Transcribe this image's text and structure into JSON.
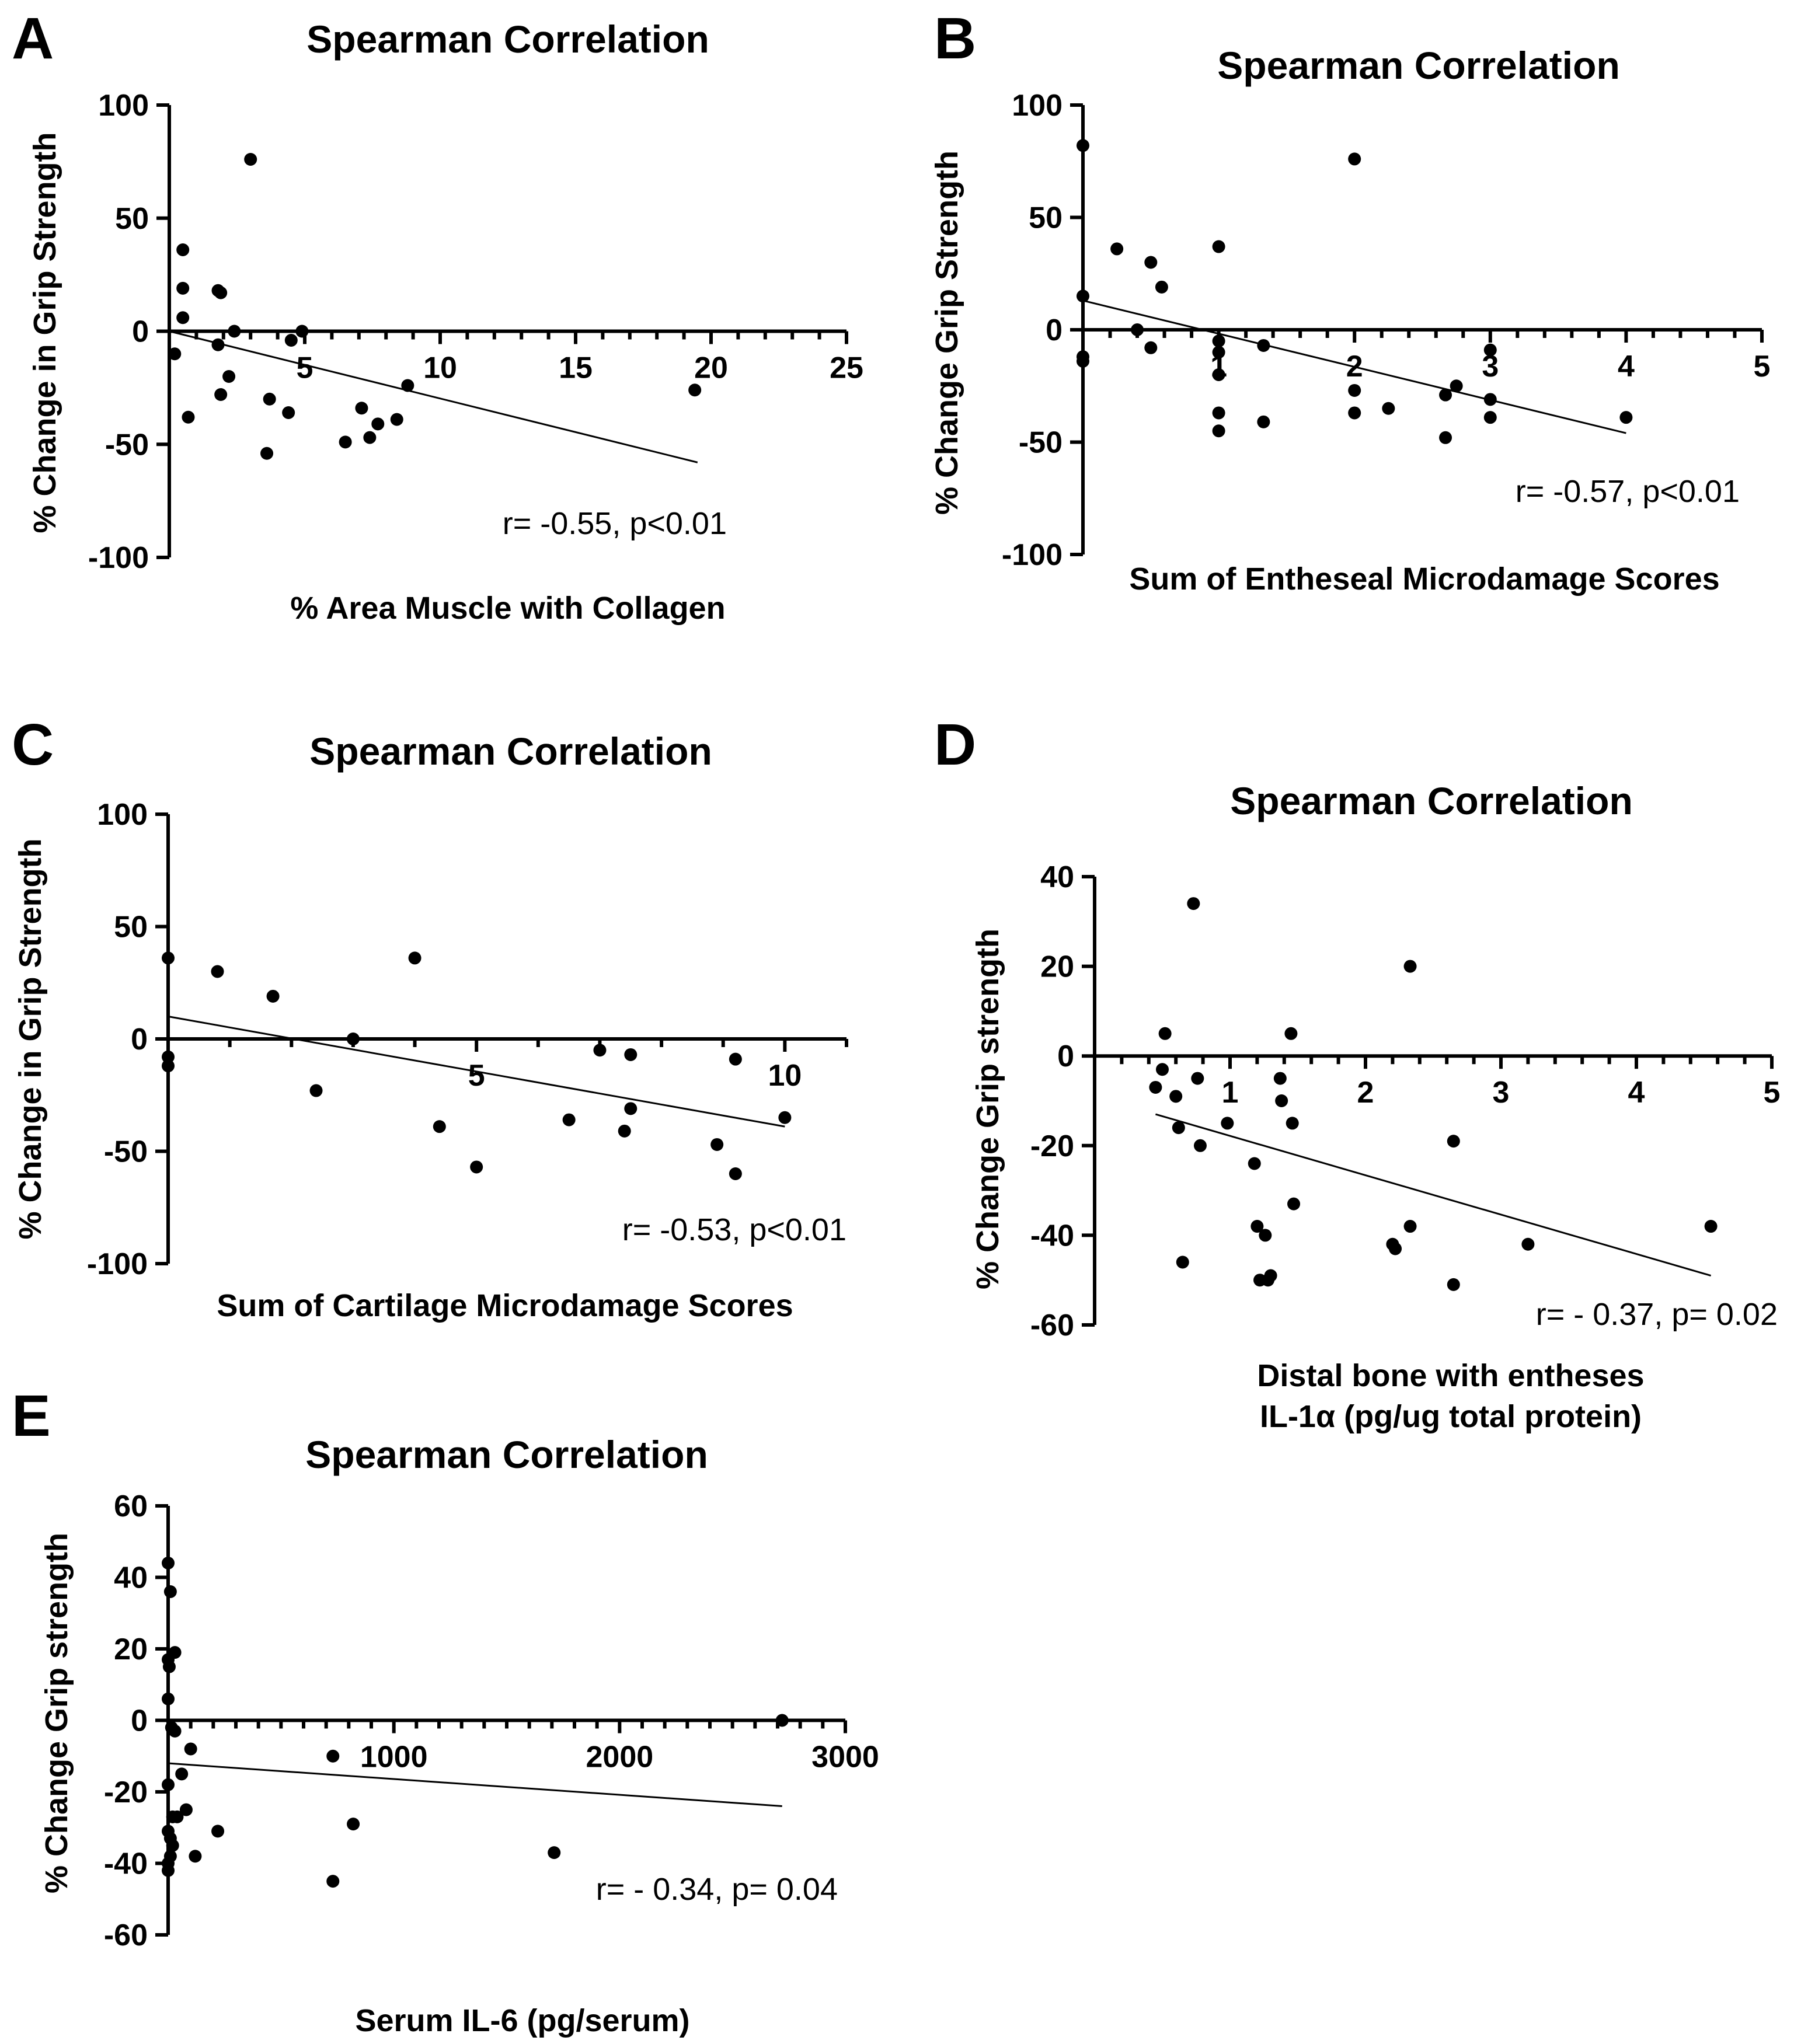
{
  "chart_data": [
    {
      "type": "scatter",
      "panel": "A",
      "title": "Spearman Correlation",
      "xlabel": [
        "% Area Muscle with Collagen"
      ],
      "ylabel": "% Change in Grip Strength",
      "xlim": [
        0,
        25
      ],
      "ylim": [
        -100,
        100
      ],
      "xticks": [
        5,
        10,
        15,
        20,
        25
      ],
      "yticks": [
        -100,
        -50,
        0,
        50,
        100
      ],
      "annotation": "r= -0.55, p<0.01",
      "fit": [
        [
          0,
          0
        ],
        [
          19.5,
          -58
        ]
      ],
      "points": [
        [
          0.2,
          -10
        ],
        [
          0.5,
          36
        ],
        [
          0.5,
          19
        ],
        [
          0.5,
          6
        ],
        [
          0.7,
          -38
        ],
        [
          1.8,
          18
        ],
        [
          1.9,
          17
        ],
        [
          1.8,
          -6
        ],
        [
          1.9,
          -28
        ],
        [
          2.2,
          -20
        ],
        [
          2.4,
          0
        ],
        [
          3,
          76
        ],
        [
          3.6,
          -54
        ],
        [
          3.7,
          -30
        ],
        [
          4.4,
          -36
        ],
        [
          4.5,
          -4
        ],
        [
          4.9,
          0
        ],
        [
          6.5,
          -49
        ],
        [
          7.1,
          -34
        ],
        [
          7.4,
          -47
        ],
        [
          7.7,
          -41
        ],
        [
          8.4,
          -39
        ],
        [
          8.8,
          -24
        ],
        [
          19.4,
          -26
        ]
      ]
    },
    {
      "type": "scatter",
      "panel": "B",
      "title": "Spearman Correlation",
      "xlabel": [
        "Sum of Entheseal Microdamage Scores"
      ],
      "ylabel": "% Change Grip Strength",
      "xlim": [
        0,
        5
      ],
      "ylim": [
        -100,
        100
      ],
      "xticks": [
        1,
        2,
        3,
        4,
        5
      ],
      "yticks": [
        -100,
        -50,
        0,
        50,
        100
      ],
      "annotation": "r= -0.57, p<0.01",
      "fit": [
        [
          0,
          13
        ],
        [
          4,
          -46
        ]
      ],
      "points": [
        [
          0,
          82
        ],
        [
          0,
          15
        ],
        [
          0,
          -12
        ],
        [
          0,
          -14
        ],
        [
          0.25,
          36
        ],
        [
          0.4,
          0
        ],
        [
          0.5,
          30
        ],
        [
          0.5,
          -8
        ],
        [
          0.58,
          19
        ],
        [
          1,
          37
        ],
        [
          1,
          -5
        ],
        [
          1,
          -10
        ],
        [
          1,
          -20
        ],
        [
          1,
          -37
        ],
        [
          1,
          -45
        ],
        [
          1.33,
          -7
        ],
        [
          1.33,
          -41
        ],
        [
          2,
          76
        ],
        [
          2,
          -27
        ],
        [
          2,
          -37
        ],
        [
          2.25,
          -35
        ],
        [
          2.67,
          -48
        ],
        [
          2.67,
          -29
        ],
        [
          2.75,
          -25
        ],
        [
          3,
          -9
        ],
        [
          3,
          -31
        ],
        [
          3,
          -39
        ],
        [
          4,
          -39
        ]
      ]
    },
    {
      "type": "scatter",
      "panel": "C",
      "title": "Spearman Correlation",
      "xlabel": [
        "Sum of Cartilage Microdamage Scores"
      ],
      "ylabel": "% Change in Grip Strength",
      "xlim": [
        0,
        11
      ],
      "ylim": [
        -100,
        100
      ],
      "xticks": [
        5,
        10
      ],
      "yticks": [
        -100,
        -50,
        0,
        50,
        100
      ],
      "annotation": "r= -0.53, p<0.01",
      "fit": [
        [
          0,
          10
        ],
        [
          10,
          -39
        ]
      ],
      "points": [
        [
          0,
          36
        ],
        [
          0,
          -8
        ],
        [
          0,
          -12
        ],
        [
          0.8,
          30
        ],
        [
          1.7,
          19
        ],
        [
          2.4,
          -23
        ],
        [
          3,
          0
        ],
        [
          4,
          36
        ],
        [
          4.4,
          -39
        ],
        [
          5,
          -57
        ],
        [
          6.5,
          -36
        ],
        [
          7,
          -5
        ],
        [
          7.4,
          -41
        ],
        [
          7.5,
          -7
        ],
        [
          7.5,
          -31
        ],
        [
          8.9,
          -47
        ],
        [
          9.2,
          -9
        ],
        [
          9.2,
          -60
        ],
        [
          10,
          -35
        ]
      ]
    },
    {
      "type": "scatter",
      "panel": "D",
      "title": "Spearman Correlation",
      "xlabel": [
        "Distal bone with entheses",
        "IL-1α (pg/ug total protein)"
      ],
      "ylabel": "% Change Grip strength",
      "xlim": [
        0,
        5
      ],
      "ylim": [
        -60,
        40
      ],
      "xticks": [
        1,
        2,
        3,
        4,
        5
      ],
      "yticks": [
        -60,
        -40,
        -20,
        0,
        20,
        40
      ],
      "annotation": "r= - 0.37, p= 0.02",
      "fit": [
        [
          0.45,
          -13
        ],
        [
          4.55,
          -49
        ]
      ],
      "points": [
        [
          0.45,
          -7
        ],
        [
          0.5,
          -3
        ],
        [
          0.52,
          5
        ],
        [
          0.62,
          -16
        ],
        [
          0.6,
          -9
        ],
        [
          0.65,
          -46
        ],
        [
          0.73,
          34
        ],
        [
          0.76,
          -5
        ],
        [
          0.78,
          -20
        ],
        [
          0.98,
          -15
        ],
        [
          1.18,
          -24
        ],
        [
          1.2,
          -38
        ],
        [
          1.22,
          -50
        ],
        [
          1.26,
          -40
        ],
        [
          1.28,
          -50
        ],
        [
          1.3,
          -49
        ],
        [
          1.37,
          -5
        ],
        [
          1.38,
          -10
        ],
        [
          1.45,
          5
        ],
        [
          1.46,
          -15
        ],
        [
          1.47,
          -33
        ],
        [
          2.2,
          -42
        ],
        [
          2.22,
          -43
        ],
        [
          2.33,
          -38
        ],
        [
          2.33,
          20
        ],
        [
          2.65,
          -19
        ],
        [
          2.65,
          -51
        ],
        [
          3.2,
          -42
        ],
        [
          4.55,
          -38
        ]
      ]
    },
    {
      "type": "scatter",
      "panel": "E",
      "title": "Spearman Correlation",
      "xlabel": [
        "Serum IL-6 (pg/serum)"
      ],
      "ylabel": "% Change Grip strength",
      "xlim": [
        0,
        3000
      ],
      "ylim": [
        -60,
        60
      ],
      "xticks": [
        1000,
        2000,
        3000
      ],
      "yticks": [
        -60,
        -40,
        -20,
        0,
        20,
        40,
        60
      ],
      "annotation": "r= - 0.34, p= 0.04",
      "fit": [
        [
          0,
          -12
        ],
        [
          2720,
          -24
        ]
      ],
      "points": [
        [
          0,
          44
        ],
        [
          10,
          36
        ],
        [
          30,
          19
        ],
        [
          0,
          17
        ],
        [
          5,
          15
        ],
        [
          0,
          6
        ],
        [
          15,
          -2
        ],
        [
          30,
          -3
        ],
        [
          100,
          -8
        ],
        [
          60,
          -15
        ],
        [
          0,
          -18
        ],
        [
          20,
          -27
        ],
        [
          40,
          -27
        ],
        [
          80,
          -25
        ],
        [
          0,
          -31
        ],
        [
          10,
          -33
        ],
        [
          20,
          -35
        ],
        [
          10,
          -38
        ],
        [
          0,
          -40
        ],
        [
          0,
          -42
        ],
        [
          120,
          -38
        ],
        [
          220,
          -31
        ],
        [
          730,
          -10
        ],
        [
          730,
          -45
        ],
        [
          820,
          -29
        ],
        [
          1710,
          -37
        ],
        [
          2720,
          0
        ]
      ]
    }
  ]
}
